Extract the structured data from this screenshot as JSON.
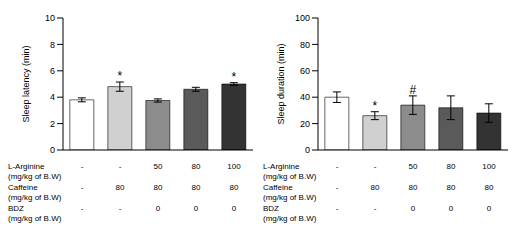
{
  "chart_data": [
    {
      "type": "bar",
      "y_label": "Sleep latency (min)",
      "categories": [
        null,
        null,
        null,
        null,
        null
      ],
      "values": [
        3.8,
        4.8,
        3.75,
        4.6,
        5.0
      ],
      "errors": [
        0.15,
        0.35,
        0.12,
        0.15,
        0.1
      ],
      "annotations": [
        null,
        "*",
        null,
        null,
        "*"
      ],
      "colors": [
        "#ffffff",
        "#d0d0d0",
        "#8c8c8c",
        "#5a5a5a",
        "#333333"
      ],
      "ylim": [
        0,
        10
      ],
      "yticks": [
        0,
        2,
        4,
        6,
        8,
        10
      ],
      "tick_labels": "y"
    },
    {
      "type": "bar",
      "y_label": "Sleep duration (min)",
      "categories": [
        null,
        null,
        null,
        null,
        null
      ],
      "values": [
        40,
        26,
        34,
        32,
        28
      ],
      "errors": [
        4,
        3,
        7,
        9,
        7
      ],
      "annotations": [
        null,
        "*",
        "#",
        null,
        null
      ],
      "colors": [
        "#ffffff",
        "#d0d0d0",
        "#8c8c8c",
        "#5a5a5a",
        "#333333"
      ],
      "ylim": [
        0,
        100
      ],
      "yticks": [
        0,
        20,
        40,
        60,
        80,
        100
      ],
      "tick_labels": "y"
    }
  ],
  "table": {
    "rows": [
      {
        "label": "L-Arginine",
        "unit": "(mg/kg of B.W)",
        "cells": [
          "-",
          "-",
          "50",
          "80",
          "100"
        ]
      },
      {
        "label": "Caffeine",
        "unit": "(mg/kg of B.W)",
        "cells": [
          "-",
          "80",
          "80",
          "80",
          "80"
        ]
      },
      {
        "label": "BDZ",
        "unit": "(mg/kg of B.W)",
        "cells": [
          "-",
          "-",
          "0",
          "0",
          "0"
        ]
      }
    ]
  }
}
